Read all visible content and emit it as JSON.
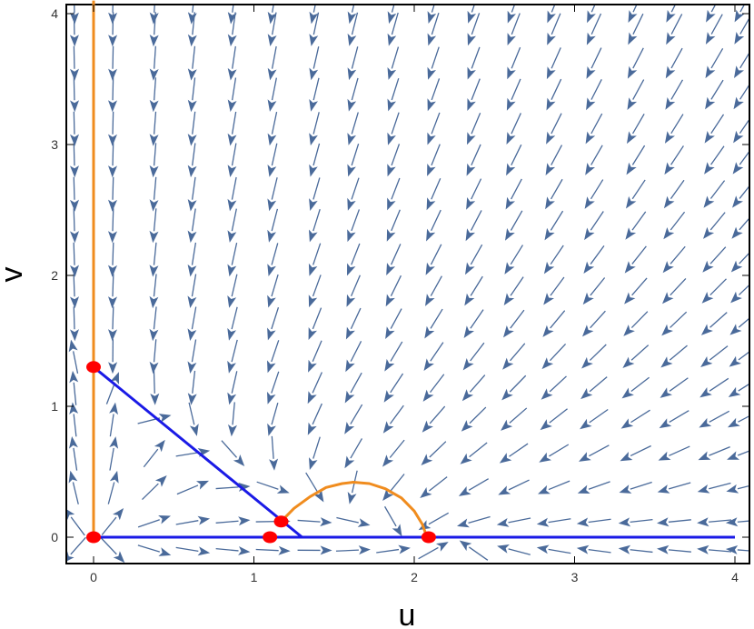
{
  "chart_data": {
    "type": "vector_field_phase_portrait",
    "xlabel": "u",
    "ylabel": "v",
    "xlim": [
      -0.2,
      4.1
    ],
    "ylim": [
      -0.2,
      4.1
    ],
    "x_ticks": [
      0,
      1,
      2,
      3,
      4
    ],
    "y_ticks": [
      0,
      1,
      2,
      3,
      4
    ],
    "x_tick_labels": [
      "0",
      "1",
      "2",
      "3",
      "4"
    ],
    "y_tick_labels": [
      "0",
      "1",
      "2",
      "3",
      "4"
    ],
    "field": {
      "color": "#4a6a9a",
      "x_samples": [
        -0.12,
        0.12,
        0.38,
        0.62,
        0.87,
        1.12,
        1.38,
        1.62,
        1.87,
        2.12,
        2.37,
        2.62,
        2.87,
        3.12,
        3.38,
        3.62,
        3.87,
        4.05
      ],
      "y_samples": [
        -0.1,
        0.12,
        0.38,
        0.64,
        0.9,
        1.14,
        1.38,
        1.63,
        1.88,
        2.12,
        2.38,
        2.62,
        2.88,
        3.12,
        3.38,
        3.62,
        3.88,
        4.05
      ]
    },
    "nullclines": [
      {
        "color": "#f08c1e",
        "points": [
          [
            0,
            0
          ],
          [
            0,
            4.1
          ]
        ]
      },
      {
        "color": "#f08c1e",
        "points": [
          [
            1.17,
            0.12
          ],
          [
            1.25,
            0.22
          ],
          [
            1.35,
            0.31
          ],
          [
            1.45,
            0.38
          ],
          [
            1.55,
            0.41
          ],
          [
            1.62,
            0.42
          ],
          [
            1.72,
            0.41
          ],
          [
            1.82,
            0.37
          ],
          [
            1.92,
            0.3
          ],
          [
            2.0,
            0.2
          ],
          [
            2.05,
            0.1
          ],
          [
            2.08,
            0.0
          ]
        ]
      },
      {
        "color": "#1a1ae6",
        "points": [
          [
            0,
            1.3
          ],
          [
            1.3,
            0
          ]
        ]
      },
      {
        "color": "#1a1ae6",
        "points": [
          [
            0,
            0
          ],
          [
            4.0,
            0
          ]
        ]
      }
    ],
    "equilibria": {
      "color": "#ff0000",
      "points": [
        [
          0,
          0
        ],
        [
          0,
          1.3
        ],
        [
          1.1,
          0
        ],
        [
          1.17,
          0.12
        ],
        [
          2.09,
          0
        ]
      ]
    }
  }
}
